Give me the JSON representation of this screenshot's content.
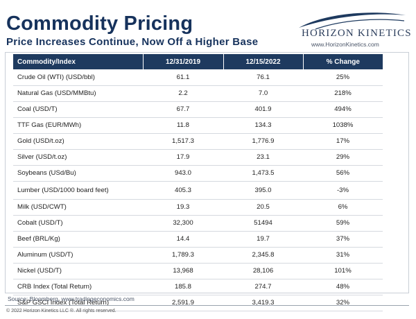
{
  "header": {
    "title": "Commodity Pricing",
    "subtitle": "Price Increases Continue, Now Off a Higher Base"
  },
  "logo": {
    "name": "Horizon Kinetics",
    "display_name": "HORIZON KINETICS",
    "url": "www.HorizonKinetics.com",
    "brand_color": "#1e3a5f"
  },
  "table": {
    "columns": [
      "Commodity/Index",
      "12/31/2019",
      "12/15/2022",
      "% Change"
    ],
    "rows": [
      [
        "Crude Oil (WTI) (USD/bbl)",
        "61.1",
        "76.1",
        "25%"
      ],
      [
        "Natural Gas (USD/MMBtu)",
        "2.2",
        "7.0",
        "218%"
      ],
      [
        "Coal (USD/T)",
        "67.7",
        "401.9",
        "494%"
      ],
      [
        "TTF Gas (EUR/MWh)",
        "11.8",
        "134.3",
        "1038%"
      ],
      [
        "Gold (USD/t.oz)",
        "1,517.3",
        "1,776.9",
        "17%"
      ],
      [
        "Silver (USD/t.oz)",
        "17.9",
        "23.1",
        "29%"
      ],
      [
        "Soybeans (USd/Bu)",
        "943.0",
        "1,473.5",
        "56%"
      ],
      [
        "Lumber (USD/1000 board feet)",
        "405.3",
        "395.0",
        "-3%"
      ],
      [
        "Milk (USD/CWT)",
        "19.3",
        "20.5",
        "6%"
      ],
      [
        "Cobalt (USD/T)",
        "32,300",
        "51494",
        "59%"
      ],
      [
        "Beef (BRL/Kg)",
        "14.4",
        "19.7",
        "37%"
      ],
      [
        "Aluminum (USD/T)",
        "1,789.3",
        "2,345.8",
        "31%"
      ],
      [
        "Nickel (USD/T)",
        "13,968",
        "28,106",
        "101%"
      ],
      [
        "CRB Index  (Total Return)",
        "185.8",
        "274.7",
        "48%"
      ],
      [
        "S&P GSCI Index (Total Return)",
        "2,591.9",
        "3,419.3",
        "32%"
      ]
    ]
  },
  "footer": {
    "source": "Source: Bloomberg, www.tradingeconomics.com",
    "copyright": "© 2022 Horizon Kinetics LLC ®.  All rights reserved."
  }
}
